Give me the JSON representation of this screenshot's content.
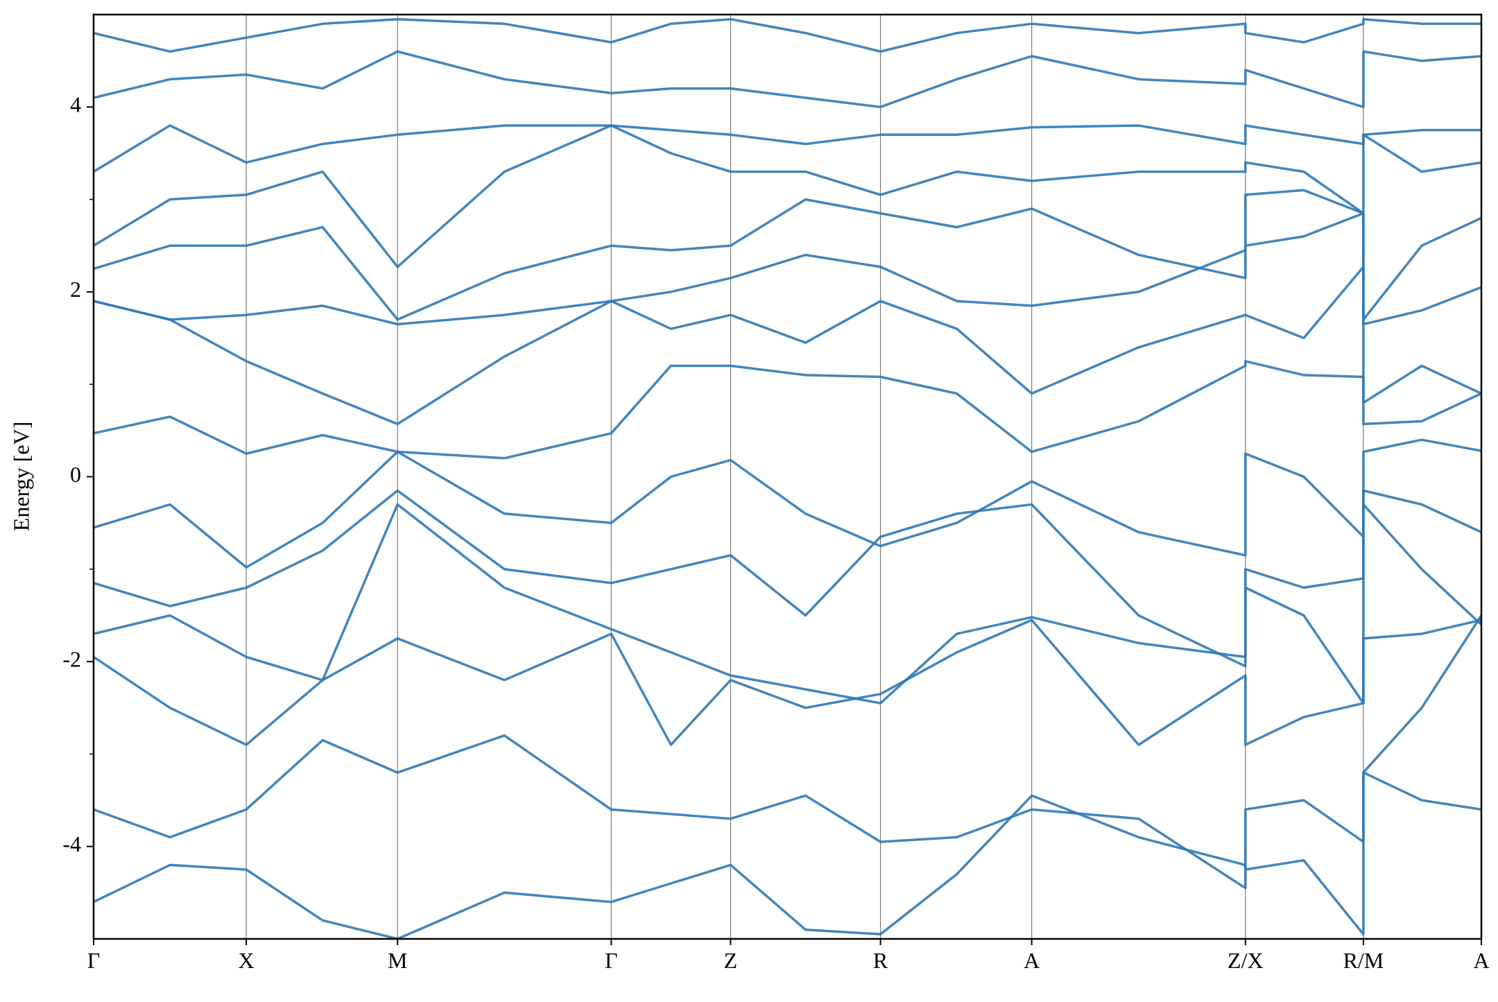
{
  "chart_data": {
    "type": "line",
    "ylabel": "Energy [eV]",
    "color": "#2e78b5",
    "x": [
      0,
      0.055,
      0.11,
      0.165,
      0.219,
      0.296,
      0.373,
      0.416,
      0.459,
      0.513,
      0.567,
      0.622,
      0.676,
      0.753,
      0.83,
      0.83,
      0.872,
      0.915,
      0.915,
      0.957,
      1.0
    ],
    "series": [
      {
        "values": [
          -4.6,
          -4.2,
          -4.25,
          -4.8,
          -5.0,
          -4.5,
          -4.6,
          -4.4,
          -4.2,
          -4.9,
          -4.95,
          -4.3,
          -3.45,
          -3.9,
          -4.2,
          -4.25,
          -4.15,
          -4.95,
          -3.2,
          -2.5,
          -1.5
        ]
      },
      {
        "values": [
          -3.6,
          -3.9,
          -3.6,
          -2.85,
          -3.2,
          -2.8,
          -3.6,
          -3.65,
          -3.7,
          -3.45,
          -3.95,
          -3.9,
          -3.6,
          -3.7,
          -4.45,
          -3.6,
          -3.5,
          -3.95,
          -3.2,
          -3.5,
          -3.6
        ]
      },
      {
        "values": [
          -1.95,
          -2.5,
          -2.9,
          -2.2,
          -1.75,
          -2.2,
          -1.7,
          -2.9,
          -2.2,
          -2.5,
          -2.35,
          -1.9,
          -1.55,
          -2.9,
          -2.15,
          -2.9,
          -2.6,
          -2.45,
          -1.75,
          -1.7,
          -1.55
        ]
      },
      {
        "values": [
          -1.7,
          -1.5,
          -1.95,
          -2.2,
          -0.3,
          -1.2,
          -1.65,
          -1.9,
          -2.15,
          -2.3,
          -2.45,
          -1.7,
          -1.52,
          -1.8,
          -1.95,
          -1.2,
          -1.5,
          -2.45,
          -0.3,
          -1.0,
          -1.6
        ]
      },
      {
        "values": [
          -1.15,
          -1.4,
          -1.2,
          -0.8,
          -0.15,
          -1.0,
          -1.15,
          -1.0,
          -0.85,
          -1.5,
          -0.65,
          -0.4,
          -0.3,
          -1.5,
          -2.05,
          -1.0,
          -1.2,
          -1.1,
          -0.15,
          -0.3,
          -0.6
        ]
      },
      {
        "values": [
          -0.55,
          -0.3,
          -0.98,
          -0.5,
          0.27,
          -0.4,
          -0.5,
          0.0,
          0.18,
          -0.4,
          -0.75,
          -0.5,
          -0.05,
          -0.6,
          -0.85,
          0.25,
          0.0,
          -0.65,
          0.27,
          0.4,
          0.28
        ]
      },
      {
        "values": [
          0.47,
          0.65,
          0.25,
          0.45,
          0.27,
          0.2,
          0.47,
          1.2,
          1.2,
          1.1,
          1.08,
          0.9,
          0.27,
          0.6,
          1.2,
          1.25,
          1.1,
          1.08,
          0.57,
          0.6,
          0.9
        ]
      },
      {
        "values": [
          1.9,
          1.7,
          1.25,
          0.9,
          0.57,
          1.3,
          1.9,
          1.6,
          1.75,
          1.45,
          1.9,
          1.6,
          0.9,
          1.4,
          1.75,
          1.75,
          1.5,
          2.27,
          0.8,
          1.2,
          0.9
        ]
      },
      {
        "values": [
          1.9,
          1.7,
          1.75,
          1.85,
          1.65,
          1.75,
          1.9,
          2.0,
          2.15,
          2.4,
          2.27,
          1.9,
          1.85,
          2.0,
          2.45,
          2.5,
          2.6,
          2.85,
          1.65,
          1.8,
          2.05
        ]
      },
      {
        "values": [
          2.25,
          2.5,
          2.5,
          2.7,
          1.7,
          2.2,
          2.5,
          2.45,
          2.5,
          3.0,
          2.85,
          2.7,
          2.9,
          2.4,
          2.15,
          3.05,
          3.1,
          2.85,
          1.7,
          2.5,
          2.8
        ]
      },
      {
        "values": [
          2.5,
          3.0,
          3.05,
          3.3,
          2.27,
          3.3,
          3.8,
          3.5,
          3.3,
          3.3,
          3.05,
          3.3,
          3.2,
          3.3,
          3.3,
          3.4,
          3.3,
          2.85,
          3.7,
          3.3,
          3.4
        ]
      },
      {
        "values": [
          3.3,
          3.8,
          3.4,
          3.6,
          3.7,
          3.8,
          3.8,
          3.75,
          3.7,
          3.6,
          3.7,
          3.7,
          3.78,
          3.8,
          3.6,
          3.8,
          3.7,
          3.6,
          3.7,
          3.75,
          3.75
        ]
      },
      {
        "values": [
          4.1,
          4.3,
          4.35,
          4.2,
          4.6,
          4.3,
          4.15,
          4.2,
          4.2,
          4.1,
          4.0,
          4.3,
          4.55,
          4.3,
          4.25,
          4.4,
          4.2,
          4.0,
          4.6,
          4.5,
          4.55
        ]
      },
      {
        "values": [
          4.8,
          4.6,
          4.75,
          4.9,
          4.95,
          4.9,
          4.7,
          4.9,
          4.95,
          4.8,
          4.6,
          4.8,
          4.9,
          4.8,
          4.9,
          4.8,
          4.7,
          4.9,
          4.95,
          4.9,
          4.9
        ]
      }
    ],
    "xlim": [
      0,
      1.0
    ],
    "xticks": [
      {
        "value": 0,
        "label": "Γ"
      },
      {
        "value": 0.11,
        "label": "X"
      },
      {
        "value": 0.219,
        "label": "M"
      },
      {
        "value": 0.373,
        "label": "Γ"
      },
      {
        "value": 0.459,
        "label": "Z"
      },
      {
        "value": 0.567,
        "label": "R"
      },
      {
        "value": 0.676,
        "label": "A"
      },
      {
        "value": 0.83,
        "label": "Z/X"
      },
      {
        "value": 0.915,
        "label": "R/M"
      },
      {
        "value": 1.0,
        "label": "A"
      }
    ],
    "ylim": [
      -5,
      5
    ],
    "yticks": [
      -4,
      -2,
      0,
      2,
      4
    ],
    "yminorticks": [
      -3,
      -1,
      1,
      3
    ]
  }
}
